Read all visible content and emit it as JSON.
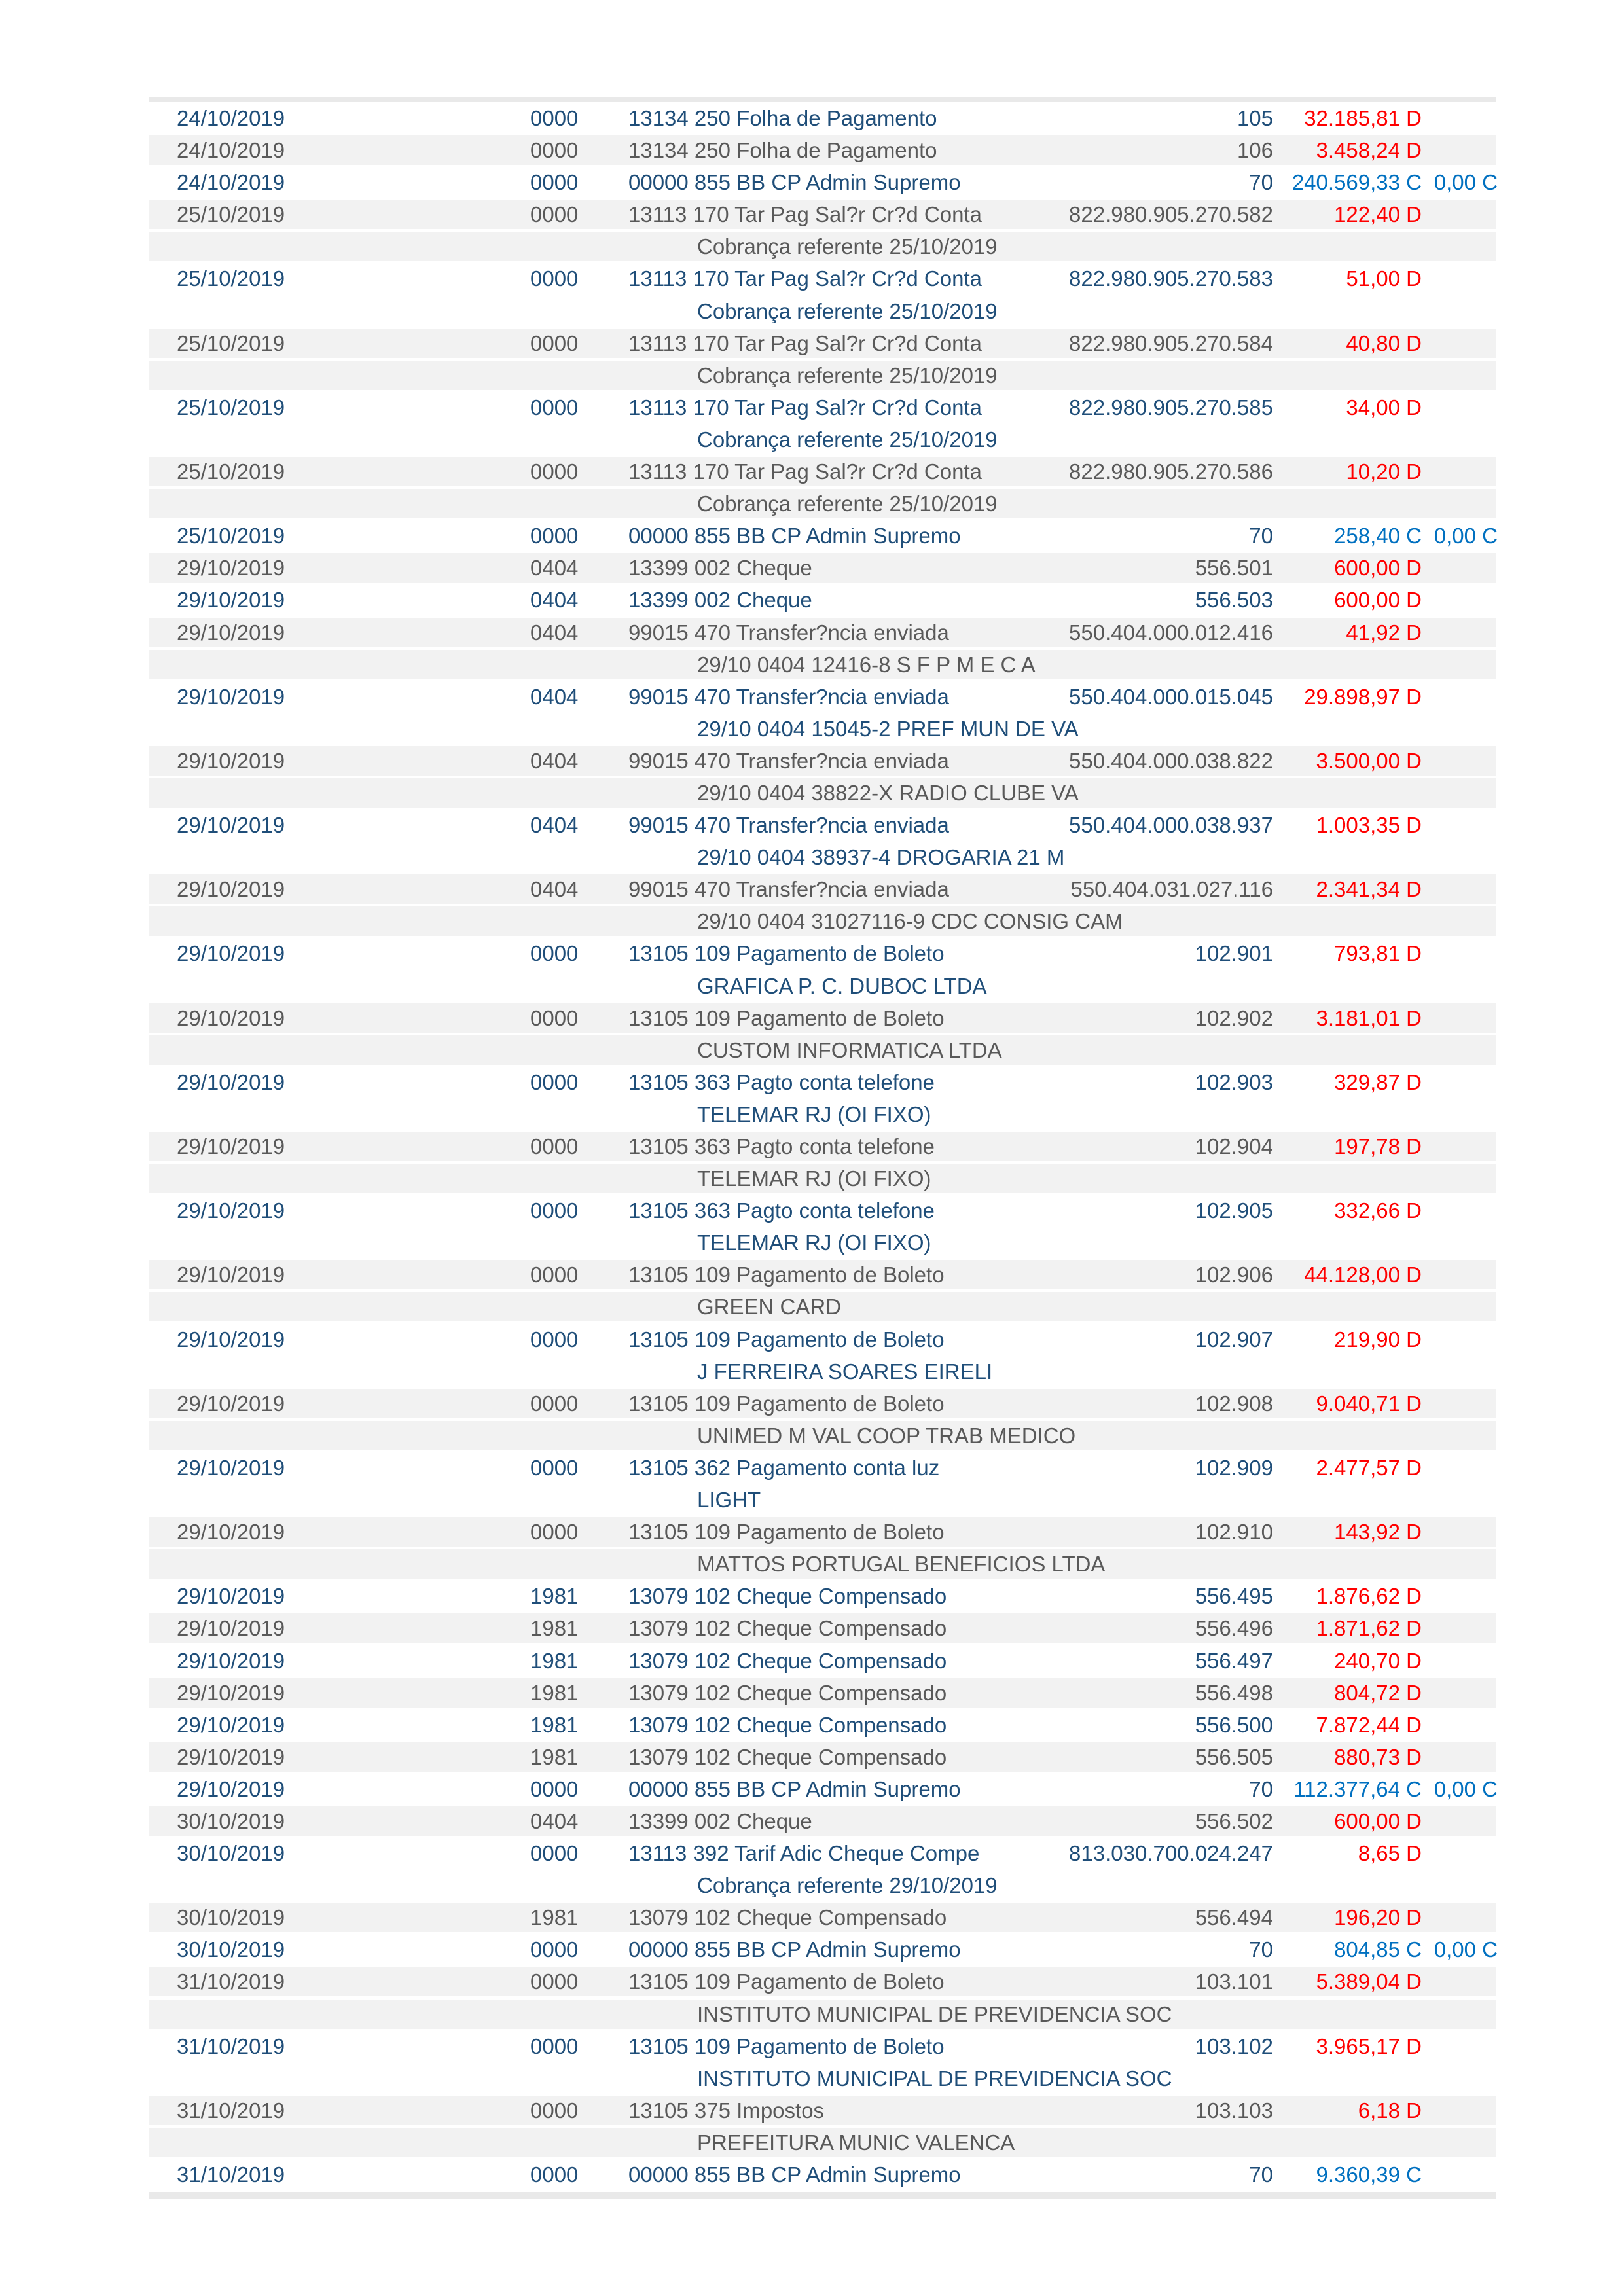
{
  "document_type_label": "extrato de conta corrente",
  "colors": {
    "navy_text": "#1F4E79",
    "gray_text": "#595959",
    "debit_value": "#FF0000",
    "credit_value": "#0070C0",
    "row_white_bg": "#FFFFFF",
    "row_gray_bg": "#F2F2F2",
    "partial_row_band": "#E9E9E9",
    "page_bg": "#FFFFFF"
  },
  "table": {
    "rows": [
      {
        "kind": "txn",
        "date": "24/10/2019",
        "code": "0000",
        "desc": "13134 250 Folha de Pagamento",
        "doc": "105",
        "value": "32.185,81 D",
        "vkind": "debit"
      },
      {
        "kind": "txn",
        "date": "24/10/2019",
        "code": "0000",
        "desc": "13134 250 Folha de Pagamento",
        "doc": "106",
        "value": "3.458,24 D",
        "vkind": "debit"
      },
      {
        "kind": "txn",
        "date": "24/10/2019",
        "code": "0000",
        "desc": "00000 855 BB CP Admin Supremo",
        "doc": "70",
        "value": "240.569,33 C",
        "vkind": "credit",
        "extra": "0,00 C"
      },
      {
        "kind": "txn",
        "date": "25/10/2019",
        "code": "0000",
        "desc": "13113 170 Tar Pag Sal?r Cr?d Conta",
        "doc": "822.980.905.270.582",
        "value": "122,40 D",
        "vkind": "debit"
      },
      {
        "kind": "cont",
        "text": "Cobrança referente 25/10/2019"
      },
      {
        "kind": "txn",
        "date": "25/10/2019",
        "code": "0000",
        "desc": "13113 170 Tar Pag Sal?r Cr?d Conta",
        "doc": "822.980.905.270.583",
        "value": "51,00 D",
        "vkind": "debit"
      },
      {
        "kind": "cont",
        "text": "Cobrança referente 25/10/2019"
      },
      {
        "kind": "txn",
        "date": "25/10/2019",
        "code": "0000",
        "desc": "13113 170 Tar Pag Sal?r Cr?d Conta",
        "doc": "822.980.905.270.584",
        "value": "40,80 D",
        "vkind": "debit"
      },
      {
        "kind": "cont",
        "text": "Cobrança referente 25/10/2019"
      },
      {
        "kind": "txn",
        "date": "25/10/2019",
        "code": "0000",
        "desc": "13113 170 Tar Pag Sal?r Cr?d Conta",
        "doc": "822.980.905.270.585",
        "value": "34,00 D",
        "vkind": "debit"
      },
      {
        "kind": "cont",
        "text": "Cobrança referente 25/10/2019"
      },
      {
        "kind": "txn",
        "date": "25/10/2019",
        "code": "0000",
        "desc": "13113 170 Tar Pag Sal?r Cr?d Conta",
        "doc": "822.980.905.270.586",
        "value": "10,20 D",
        "vkind": "debit"
      },
      {
        "kind": "cont",
        "text": "Cobrança referente 25/10/2019"
      },
      {
        "kind": "txn",
        "date": "25/10/2019",
        "code": "0000",
        "desc": "00000 855 BB CP Admin Supremo",
        "doc": "70",
        "value": "258,40 C",
        "vkind": "credit",
        "extra": "0,00 C"
      },
      {
        "kind": "txn",
        "date": "29/10/2019",
        "code": "0404",
        "desc": "13399 002 Cheque",
        "doc": "556.501",
        "value": "600,00 D",
        "vkind": "debit"
      },
      {
        "kind": "txn",
        "date": "29/10/2019",
        "code": "0404",
        "desc": "13399 002 Cheque",
        "doc": "556.503",
        "value": "600,00 D",
        "vkind": "debit"
      },
      {
        "kind": "txn",
        "date": "29/10/2019",
        "code": "0404",
        "desc": "99015 470 Transfer?ncia enviada",
        "doc": "550.404.000.012.416",
        "value": "41,92 D",
        "vkind": "debit"
      },
      {
        "kind": "cont",
        "text": "29/10 0404 12416-8 S F P M E C A"
      },
      {
        "kind": "txn",
        "date": "29/10/2019",
        "code": "0404",
        "desc": "99015 470 Transfer?ncia enviada",
        "doc": "550.404.000.015.045",
        "value": "29.898,97 D",
        "vkind": "debit"
      },
      {
        "kind": "cont",
        "text": "29/10 0404 15045-2 PREF MUN DE VA"
      },
      {
        "kind": "txn",
        "date": "29/10/2019",
        "code": "0404",
        "desc": "99015 470 Transfer?ncia enviada",
        "doc": "550.404.000.038.822",
        "value": "3.500,00 D",
        "vkind": "debit"
      },
      {
        "kind": "cont",
        "text": "29/10 0404 38822-X RADIO CLUBE VA"
      },
      {
        "kind": "txn",
        "date": "29/10/2019",
        "code": "0404",
        "desc": "99015 470 Transfer?ncia enviada",
        "doc": "550.404.000.038.937",
        "value": "1.003,35 D",
        "vkind": "debit"
      },
      {
        "kind": "cont",
        "text": "29/10 0404 38937-4 DROGARIA 21 M"
      },
      {
        "kind": "txn",
        "date": "29/10/2019",
        "code": "0404",
        "desc": "99015 470 Transfer?ncia enviada",
        "doc": "550.404.031.027.116",
        "value": "2.341,34 D",
        "vkind": "debit"
      },
      {
        "kind": "cont",
        "text": "29/10 0404 31027116-9 CDC CONSIG CAM"
      },
      {
        "kind": "txn",
        "date": "29/10/2019",
        "code": "0000",
        "desc": "13105 109 Pagamento de Boleto",
        "doc": "102.901",
        "value": "793,81 D",
        "vkind": "debit"
      },
      {
        "kind": "cont",
        "text": "GRAFICA P. C. DUBOC LTDA"
      },
      {
        "kind": "txn",
        "date": "29/10/2019",
        "code": "0000",
        "desc": "13105 109 Pagamento de Boleto",
        "doc": "102.902",
        "value": "3.181,01 D",
        "vkind": "debit"
      },
      {
        "kind": "cont",
        "text": "CUSTOM INFORMATICA LTDA"
      },
      {
        "kind": "txn",
        "date": "29/10/2019",
        "code": "0000",
        "desc": "13105 363 Pagto conta telefone",
        "doc": "102.903",
        "value": "329,87 D",
        "vkind": "debit"
      },
      {
        "kind": "cont",
        "text": "TELEMAR RJ (OI FIXO)"
      },
      {
        "kind": "txn",
        "date": "29/10/2019",
        "code": "0000",
        "desc": "13105 363 Pagto conta telefone",
        "doc": "102.904",
        "value": "197,78 D",
        "vkind": "debit"
      },
      {
        "kind": "cont",
        "text": "TELEMAR RJ (OI FIXO)"
      },
      {
        "kind": "txn",
        "date": "29/10/2019",
        "code": "0000",
        "desc": "13105 363 Pagto conta telefone",
        "doc": "102.905",
        "value": "332,66 D",
        "vkind": "debit"
      },
      {
        "kind": "cont",
        "text": "TELEMAR RJ (OI FIXO)"
      },
      {
        "kind": "txn",
        "date": "29/10/2019",
        "code": "0000",
        "desc": "13105 109 Pagamento de Boleto",
        "doc": "102.906",
        "value": "44.128,00 D",
        "vkind": "debit"
      },
      {
        "kind": "cont",
        "text": "GREEN CARD"
      },
      {
        "kind": "txn",
        "date": "29/10/2019",
        "code": "0000",
        "desc": "13105 109 Pagamento de Boleto",
        "doc": "102.907",
        "value": "219,90 D",
        "vkind": "debit"
      },
      {
        "kind": "cont",
        "text": "J FERREIRA SOARES EIRELI"
      },
      {
        "kind": "txn",
        "date": "29/10/2019",
        "code": "0000",
        "desc": "13105 109 Pagamento de Boleto",
        "doc": "102.908",
        "value": "9.040,71 D",
        "vkind": "debit"
      },
      {
        "kind": "cont",
        "text": "UNIMED M VAL COOP TRAB MEDICO"
      },
      {
        "kind": "txn",
        "date": "29/10/2019",
        "code": "0000",
        "desc": "13105 362 Pagamento conta luz",
        "doc": "102.909",
        "value": "2.477,57 D",
        "vkind": "debit"
      },
      {
        "kind": "cont",
        "text": "LIGHT"
      },
      {
        "kind": "txn",
        "date": "29/10/2019",
        "code": "0000",
        "desc": "13105 109 Pagamento de Boleto",
        "doc": "102.910",
        "value": "143,92 D",
        "vkind": "debit"
      },
      {
        "kind": "cont",
        "text": "MATTOS PORTUGAL BENEFICIOS LTDA"
      },
      {
        "kind": "txn",
        "date": "29/10/2019",
        "code": "1981",
        "desc": "13079 102 Cheque Compensado",
        "doc": "556.495",
        "value": "1.876,62 D",
        "vkind": "debit"
      },
      {
        "kind": "txn",
        "date": "29/10/2019",
        "code": "1981",
        "desc": "13079 102 Cheque Compensado",
        "doc": "556.496",
        "value": "1.871,62 D",
        "vkind": "debit"
      },
      {
        "kind": "txn",
        "date": "29/10/2019",
        "code": "1981",
        "desc": "13079 102 Cheque Compensado",
        "doc": "556.497",
        "value": "240,70 D",
        "vkind": "debit"
      },
      {
        "kind": "txn",
        "date": "29/10/2019",
        "code": "1981",
        "desc": "13079 102 Cheque Compensado",
        "doc": "556.498",
        "value": "804,72 D",
        "vkind": "debit"
      },
      {
        "kind": "txn",
        "date": "29/10/2019",
        "code": "1981",
        "desc": "13079 102 Cheque Compensado",
        "doc": "556.500",
        "value": "7.872,44 D",
        "vkind": "debit"
      },
      {
        "kind": "txn",
        "date": "29/10/2019",
        "code": "1981",
        "desc": "13079 102 Cheque Compensado",
        "doc": "556.505",
        "value": "880,73 D",
        "vkind": "debit"
      },
      {
        "kind": "txn",
        "date": "29/10/2019",
        "code": "0000",
        "desc": "00000 855 BB CP Admin Supremo",
        "doc": "70",
        "value": "112.377,64 C",
        "vkind": "credit",
        "extra": "0,00 C"
      },
      {
        "kind": "txn",
        "date": "30/10/2019",
        "code": "0404",
        "desc": "13399 002 Cheque",
        "doc": "556.502",
        "value": "600,00 D",
        "vkind": "debit"
      },
      {
        "kind": "txn",
        "date": "30/10/2019",
        "code": "0000",
        "desc": "13113 392 Tarif Adic Cheque Compe",
        "doc": "813.030.700.024.247",
        "value": "8,65 D",
        "vkind": "debit"
      },
      {
        "kind": "cont",
        "text": "Cobrança referente 29/10/2019"
      },
      {
        "kind": "txn",
        "date": "30/10/2019",
        "code": "1981",
        "desc": "13079 102 Cheque Compensado",
        "doc": "556.494",
        "value": "196,20 D",
        "vkind": "debit"
      },
      {
        "kind": "txn",
        "date": "30/10/2019",
        "code": "0000",
        "desc": "00000 855 BB CP Admin Supremo",
        "doc": "70",
        "value": "804,85 C",
        "vkind": "credit",
        "extra": "0,00 C"
      },
      {
        "kind": "txn",
        "date": "31/10/2019",
        "code": "0000",
        "desc": "13105 109 Pagamento de Boleto",
        "doc": "103.101",
        "value": "5.389,04 D",
        "vkind": "debit"
      },
      {
        "kind": "cont",
        "text": "INSTITUTO MUNICIPAL DE PREVIDENCIA SOC"
      },
      {
        "kind": "txn",
        "date": "31/10/2019",
        "code": "0000",
        "desc": "13105 109 Pagamento de Boleto",
        "doc": "103.102",
        "value": "3.965,17 D",
        "vkind": "debit"
      },
      {
        "kind": "cont",
        "text": "INSTITUTO MUNICIPAL DE PREVIDENCIA SOC"
      },
      {
        "kind": "txn",
        "date": "31/10/2019",
        "code": "0000",
        "desc": "13105 375 Impostos",
        "doc": "103.103",
        "value": "6,18 D",
        "vkind": "debit"
      },
      {
        "kind": "cont",
        "text": "PREFEITURA MUNIC VALENCA"
      },
      {
        "kind": "txn",
        "date": "31/10/2019",
        "code": "0000",
        "desc": "00000 855 BB CP Admin Supremo",
        "doc": "70",
        "value": "9.360,39 C",
        "vkind": "credit"
      }
    ]
  }
}
